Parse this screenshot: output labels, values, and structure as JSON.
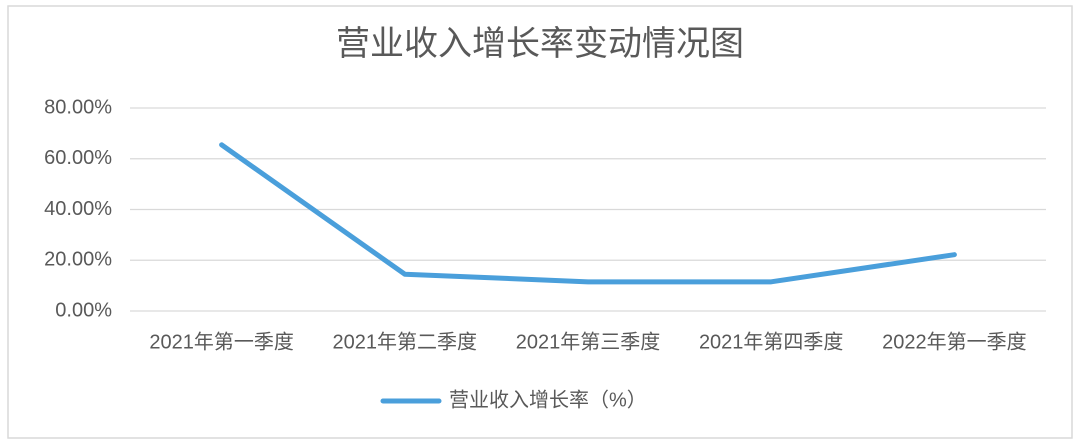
{
  "chart_data": {
    "type": "line",
    "title": "营业收入增长率变动情况图",
    "categories": [
      "2021年第一季度",
      "2021年第二季度",
      "2021年第三季度",
      "2021年第四季度",
      "2022年第一季度"
    ],
    "series": [
      {
        "name": "营业收入增长率（%）",
        "color": "#4a9fdb",
        "values": [
          65.5,
          14.5,
          11.5,
          11.5,
          22.2
        ]
      }
    ],
    "ylim": [
      0,
      80
    ],
    "yticks": [
      {
        "value": 0,
        "label": "0.00%"
      },
      {
        "value": 20,
        "label": "20.00%"
      },
      {
        "value": 40,
        "label": "40.00%"
      },
      {
        "value": 60,
        "label": "60.00%"
      },
      {
        "value": 80,
        "label": "80.00%"
      }
    ],
    "grid": true,
    "legend": "bottom"
  }
}
